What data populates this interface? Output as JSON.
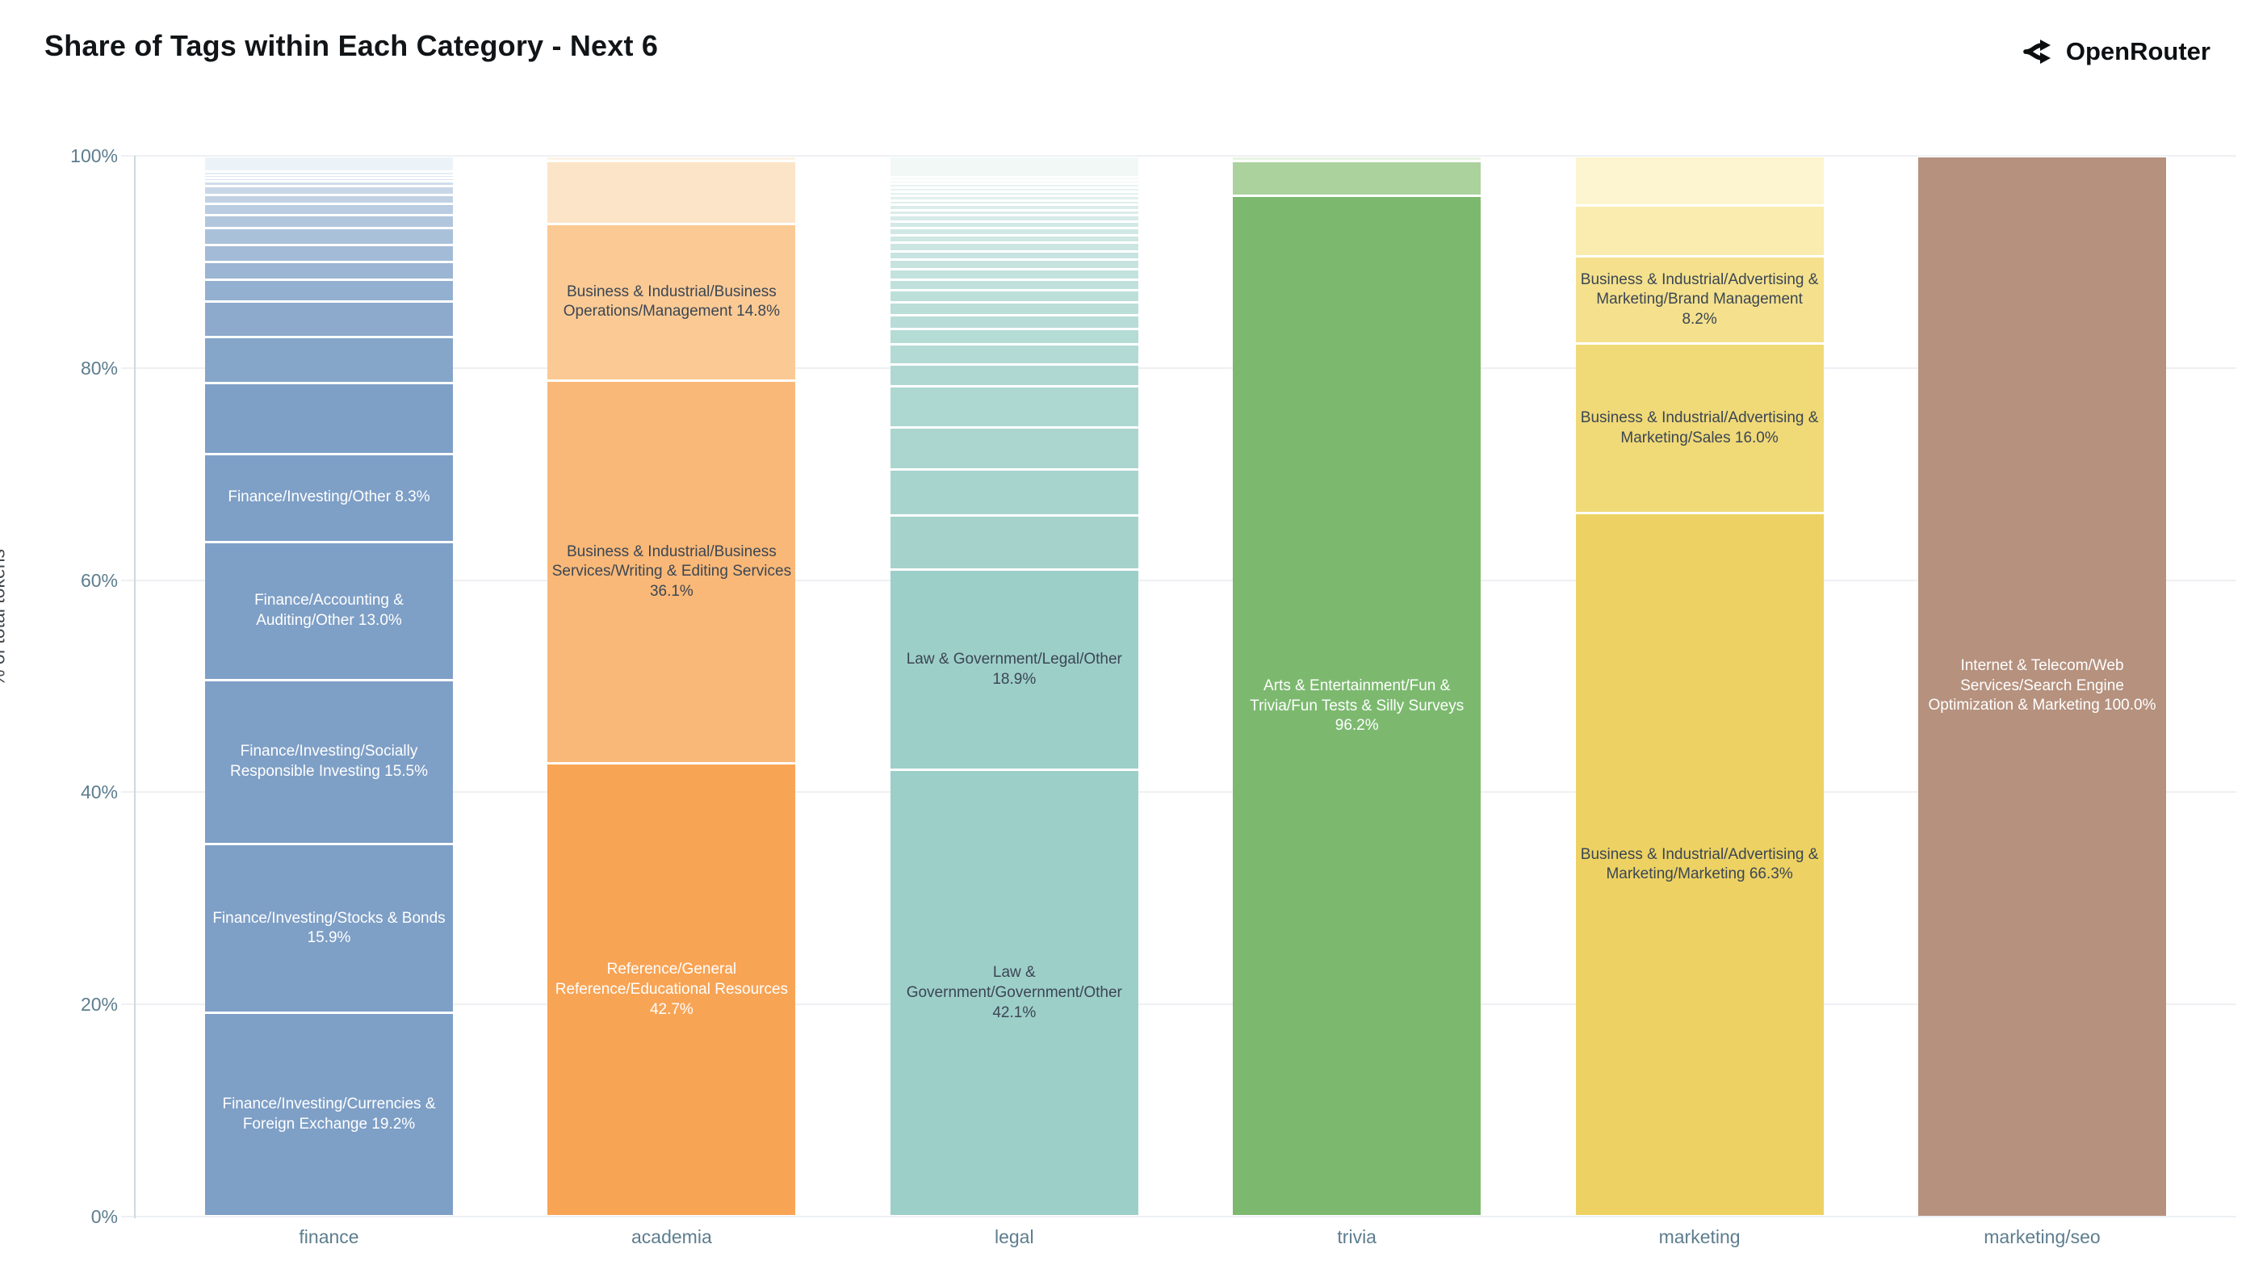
{
  "header": {
    "title": "Share of Tags within Each Category - Next 6",
    "brand": "OpenRouter"
  },
  "axes": {
    "y_title": "% of total tokens",
    "y_ticks": [
      {
        "label": "0%",
        "value": 0
      },
      {
        "label": "20%",
        "value": 20
      },
      {
        "label": "40%",
        "value": 40
      },
      {
        "label": "60%",
        "value": 60
      },
      {
        "label": "80%",
        "value": 80
      },
      {
        "label": "100%",
        "value": 100
      }
    ]
  },
  "chart_data": {
    "type": "bar",
    "stacked": true,
    "percent": true,
    "title": "Share of Tags within Each Category - Next 6",
    "xlabel": "",
    "ylabel": "% of total tokens",
    "ylim": [
      0,
      100
    ],
    "grid": true,
    "legend": false,
    "categories": [
      "finance",
      "academia",
      "legal",
      "trivia",
      "marketing",
      "marketing/seo"
    ],
    "bars": [
      {
        "category": "finance",
        "labeled": [
          {
            "label": "Finance/Investing/Currencies & Foreign Exchange 19.2%",
            "value": 19.2,
            "color": "#7e9fc6",
            "text": "light"
          },
          {
            "label": "Finance/Investing/Stocks & Bonds 15.9%",
            "value": 15.9,
            "color": "#7e9fc6",
            "text": "light"
          },
          {
            "label": "Finance/Investing/Socially Responsible Investing 15.5%",
            "value": 15.5,
            "color": "#7e9fc6",
            "text": "light"
          },
          {
            "label": "Finance/Accounting & Auditing/Other 13.0%",
            "value": 13.0,
            "color": "#7e9fc6",
            "text": "light"
          },
          {
            "label": "Finance/Investing/Other 8.3%",
            "value": 8.3,
            "color": "#7e9fc6",
            "text": "light"
          }
        ],
        "unlabeled": {
          "values": [
            6.7,
            4.35,
            3.35,
            2.0,
            1.7,
            1.6,
            1.6,
            1.2,
            1.05,
            0.85,
            0.85,
            0.45,
            0.3,
            0.3,
            0.3,
            1.5
          ],
          "color_from": "#7e9fc6",
          "color_to": "#ecf3f8"
        }
      },
      {
        "category": "academia",
        "labeled": [
          {
            "label": "Reference/General Reference/Educational Resources 42.7%",
            "value": 42.7,
            "color": "#f8a455",
            "text": "light"
          },
          {
            "label": "Business & Industrial/Business Services/Writing & Editing Services 36.1%",
            "value": 36.1,
            "color": "#f9b877",
            "text": "dark"
          },
          {
            "label": "Business & Industrial/Business Operations/Management 14.8%",
            "value": 14.8,
            "color": "#fbca94",
            "text": "dark"
          }
        ],
        "unlabeled": {
          "values": [
            5.9,
            0.5
          ],
          "color_from": "#fce4c8",
          "color_to": "#fdf2e6"
        }
      },
      {
        "category": "legal",
        "labeled": [
          {
            "label": "Law & Government/Government/Other 42.1%",
            "value": 42.1,
            "color": "#9dcfc9",
            "text": "dark"
          },
          {
            "label": "Law & Government/Legal/Other 18.9%",
            "value": 18.9,
            "color": "#9dcfc9",
            "text": "dark"
          }
        ],
        "unlabeled": {
          "values": [
            5.1,
            4.3,
            4.0,
            3.9,
            2.0,
            1.9,
            1.5,
            1.3,
            1.2,
            1.1,
            1.0,
            1.0,
            0.9,
            0.8,
            0.8,
            0.7,
            0.7,
            0.6,
            0.6,
            0.5,
            0.5,
            0.4,
            0.4,
            0.4,
            0.4,
            0.35,
            0.35,
            0.3,
            2.0
          ],
          "color_from": "#a5d3cc",
          "color_to": "#f1f8f6"
        }
      },
      {
        "category": "trivia",
        "labeled": [
          {
            "label": "Arts & Entertainment/Fun & Trivia/Fun Tests & Silly Surveys 96.2%",
            "value": 96.2,
            "color": "#7cb96f",
            "text": "light"
          }
        ],
        "unlabeled": {
          "values": [
            3.3,
            0.5
          ],
          "color_from": "#abd29d",
          "color_to": "#e9f4e3"
        }
      },
      {
        "category": "marketing",
        "labeled": [
          {
            "label": "Business & Industrial/Advertising & Marketing/Marketing 66.3%",
            "value": 66.3,
            "color": "#edd263",
            "text": "dark"
          },
          {
            "label": "Business & Industrial/Advertising & Marketing/Sales 16.0%",
            "value": 16.0,
            "color": "#f0d977",
            "text": "dark"
          },
          {
            "label": "Business & Industrial/Advertising & Marketing/Brand Management 8.2%",
            "value": 8.2,
            "color": "#f5e18d",
            "text": "dark"
          }
        ],
        "unlabeled": {
          "values": [
            4.8,
            4.7
          ],
          "color_from": "#f9ecae",
          "color_to": "#fdf5cf"
        }
      },
      {
        "category": "marketing/seo",
        "labeled": [
          {
            "label": "Internet & Telecom/Web Services/Search Engine Optimization & Marketing 100.0%",
            "value": 100.0,
            "color": "#b5917e",
            "text": "light"
          }
        ],
        "unlabeled": {
          "values": [],
          "color_from": "#b5917e",
          "color_to": "#b5917e"
        }
      }
    ]
  }
}
